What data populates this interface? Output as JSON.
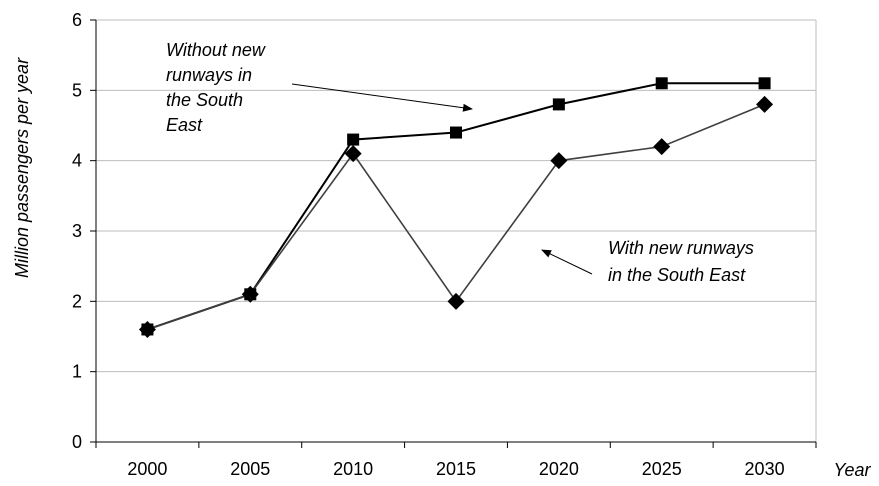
{
  "chart_data": {
    "type": "line",
    "title": "",
    "xlabel": "Year",
    "ylabel": "Million passengers per year",
    "x": [
      "2000",
      "2005",
      "2010",
      "2015",
      "2020",
      "2025",
      "2030"
    ],
    "ylim": [
      0,
      6
    ],
    "yticks": [
      0,
      1,
      2,
      3,
      4,
      5,
      6
    ],
    "grid": true,
    "legend": "none",
    "series": [
      {
        "values": [
          1.6,
          2.1,
          4.3,
          4.4,
          4.8,
          5.1,
          5.1
        ],
        "marker": "square",
        "color": "#000000"
      },
      {
        "values": [
          1.6,
          2.1,
          4.1,
          2.0,
          4.0,
          4.2,
          4.8
        ],
        "marker": "diamond",
        "color": "#000000"
      }
    ],
    "annotations": [
      {
        "lines": [
          "Without new",
          "runways in",
          "the South",
          "East"
        ],
        "points_to_series": 0
      },
      {
        "lines": [
          "With new runways",
          "in the South East"
        ],
        "points_to_series": 1
      }
    ]
  }
}
